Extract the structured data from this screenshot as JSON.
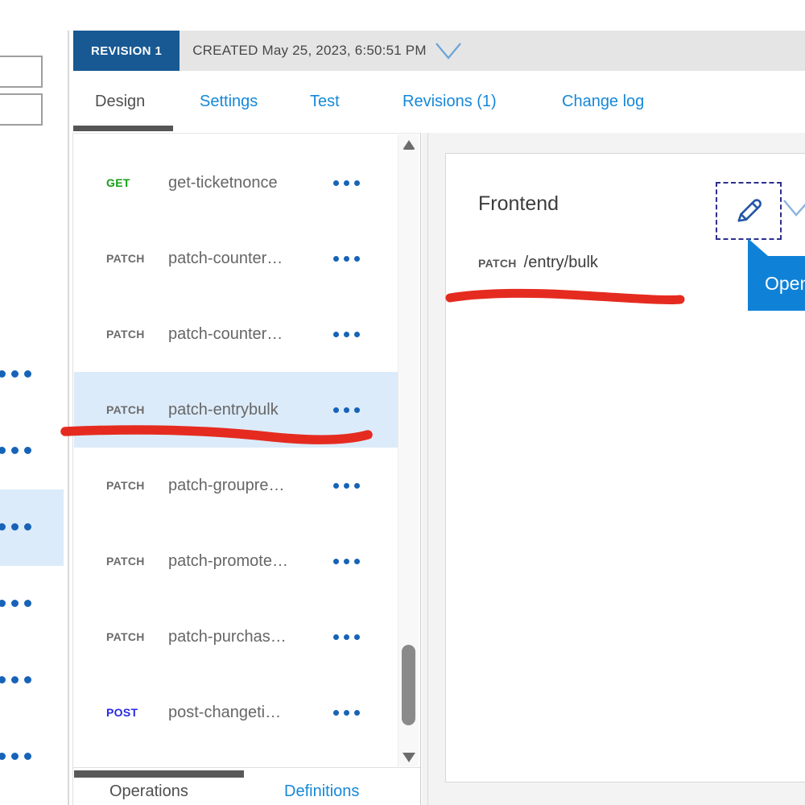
{
  "revision_bar": {
    "badge": "REVISION 1",
    "created_label": "CREATED May 25, 2023, 6:50:51 PM",
    "chevron_icon": "chevron-down"
  },
  "tabs": [
    {
      "label": "Design",
      "active": true
    },
    {
      "label": "Settings",
      "active": false
    },
    {
      "label": "Test",
      "active": false
    },
    {
      "label": "Revisions (1)",
      "active": false
    },
    {
      "label": "Change log",
      "active": false
    }
  ],
  "operations": {
    "items": [
      {
        "verb": "GET",
        "name": "get-ticketnonce",
        "selected": false
      },
      {
        "verb": "PATCH",
        "name": "patch-counter…",
        "selected": false
      },
      {
        "verb": "PATCH",
        "name": "patch-counter…",
        "selected": false
      },
      {
        "verb": "PATCH",
        "name": "patch-entrybulk",
        "selected": true
      },
      {
        "verb": "PATCH",
        "name": "patch-groupre…",
        "selected": false
      },
      {
        "verb": "PATCH",
        "name": "patch-promote…",
        "selected": false
      },
      {
        "verb": "PATCH",
        "name": "patch-purchas…",
        "selected": false
      },
      {
        "verb": "POST",
        "name": "post-changeti…",
        "selected": false
      }
    ],
    "more_icon": "ellipsis",
    "footer": {
      "operations_label": "Operations",
      "definitions_label": "Definitions"
    }
  },
  "frontend": {
    "title": "Frontend",
    "method": "PATCH",
    "path": "/entry/bulk",
    "edit_icon": "pencil",
    "dropdown_icon": "chevron-down",
    "tooltip": "Open"
  },
  "colors": {
    "badge_blue": "#185993",
    "accent_blue": "#1588d9",
    "tooltip_blue": "#0f82d8",
    "selected_row": "#dcebfa",
    "annotation_red": "#e52b20",
    "dots_blue": "#1763b8",
    "verb_get": "#12a112",
    "verb_patch": "#6b6b6b",
    "verb_post": "#2828e4"
  }
}
